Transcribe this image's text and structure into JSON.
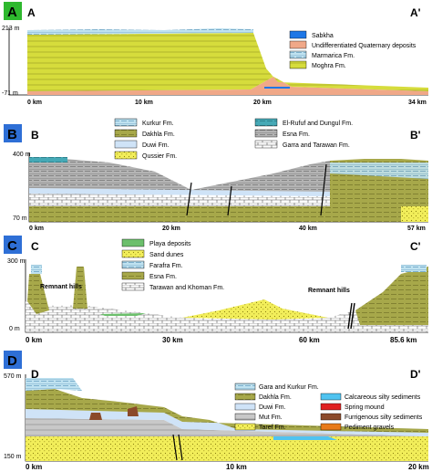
{
  "panels": [
    {
      "letter": "A",
      "section_start": "A",
      "section_end": "A'",
      "y_top_label": "213 m",
      "y_bottom_label": "-71 m",
      "x_ticks": [
        "0 km",
        "10 km",
        "20 km",
        "34 km"
      ],
      "legend": [
        {
          "label": "Sabkha",
          "color": "#1f77e6"
        },
        {
          "label": "Undifferentiated Quaternary deposits",
          "color": "#f0a888"
        },
        {
          "label": "Marmarica Fm.",
          "color": "#bfe2f0"
        },
        {
          "label": "Moghra Fm.",
          "color": "#d6dc3c"
        }
      ]
    },
    {
      "letter": "B",
      "section_start": "B",
      "section_end": "B'",
      "y_top_label": "400 m",
      "y_bottom_label": "70 m",
      "x_ticks": [
        "0 km",
        "20 km",
        "40 km",
        "57 km"
      ],
      "legend": [
        {
          "label": "Kurkur Fm.",
          "color": "#bfe2f0"
        },
        {
          "label": "Dakhla Fm.",
          "color": "#a7a84a"
        },
        {
          "label": "Duwi Fm.",
          "color": "#cfe3f7"
        },
        {
          "label": "Qussier Fm.",
          "color": "#f2ee5a"
        },
        {
          "label": "El-Rufuf and Dungul Fm.",
          "color": "#46a9b6"
        },
        {
          "label": "Esna Fm.",
          "color": "#b4b4b4"
        },
        {
          "label": "Garra and Tarawan Fm.",
          "color": "#ffffff"
        }
      ]
    },
    {
      "letter": "C",
      "section_start": "C",
      "section_end": "C'",
      "y_top_label": "300 m",
      "y_bottom_label": "0 m",
      "x_ticks": [
        "0 km",
        "30 km",
        "60 km",
        "85.6 km"
      ],
      "annotations": [
        "Remnant hills",
        "Remnant hills"
      ],
      "legend": [
        {
          "label": "Playa deposits",
          "color": "#6cbf6c"
        },
        {
          "label": "Sand dunes",
          "color": "#f2ee5a"
        },
        {
          "label": "Farafra Fm.",
          "color": "#bfe2f0"
        },
        {
          "label": "Esna Fm.",
          "color": "#a7a84a"
        },
        {
          "label": "Tarawan and Khoman Fm.",
          "color": "#ffffff"
        }
      ]
    },
    {
      "letter": "D",
      "section_start": "D",
      "section_end": "D'",
      "y_top_label": "570 m",
      "y_bottom_label": "150 m",
      "x_ticks": [
        "0 km",
        "10 km",
        "20 km"
      ],
      "legend": [
        {
          "label": "Gara and Kurkur Fm.",
          "color": "#bfe2f0"
        },
        {
          "label": "Dakhla Fm.",
          "color": "#a7a84a"
        },
        {
          "label": "Duwi Fm.",
          "color": "#cfe3f7"
        },
        {
          "label": "Mut Fm.",
          "color": "#c8c8c8"
        },
        {
          "label": "Taref Fm.",
          "color": "#f2ee5a"
        },
        {
          "label": "Calcareous silty sediments",
          "color": "#4fc3f0"
        },
        {
          "label": "Spring mound",
          "color": "#e02020"
        },
        {
          "label": "Furrigenous silty sediments",
          "color": "#8b4a2a"
        },
        {
          "label": "Pediment gravels",
          "color": "#e87a1a"
        }
      ]
    }
  ]
}
